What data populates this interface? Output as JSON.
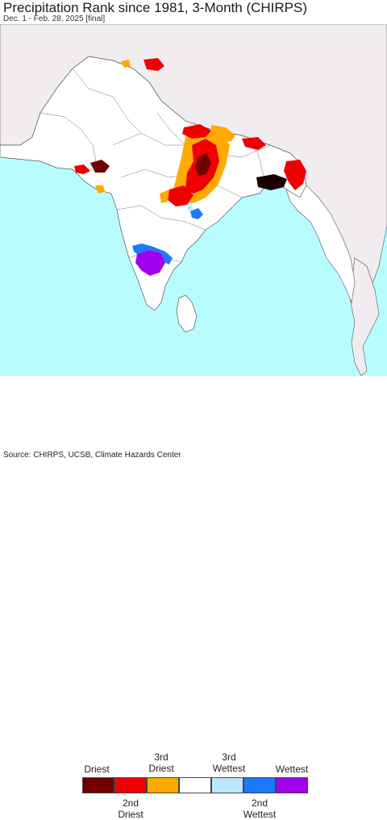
{
  "header": {
    "title": "Precipitation Rank since 1981, 3-Month (CHIRPS)",
    "subtitle": "Dec. 1 - Feb. 28, 2025 [final]"
  },
  "colors": {
    "ocean": "#b8fcff",
    "land_outside": "#f1ecf0",
    "land_region": "#ffffff",
    "border": "#555555"
  },
  "legend": {
    "classes": [
      {
        "top_label": "Driest",
        "bottom_label": "",
        "color": "#720000"
      },
      {
        "top_label": "",
        "bottom_label": "2nd\nDriest",
        "color": "#ee0000"
      },
      {
        "top_label": "3rd\nDriest",
        "bottom_label": "",
        "color": "#ffaa00"
      },
      {
        "top_label": "",
        "bottom_label": "",
        "color": "#ffffff"
      },
      {
        "top_label": "3rd\nWettest",
        "bottom_label": "",
        "color": "#bde8fb"
      },
      {
        "top_label": "",
        "bottom_label": "2nd\nWettest",
        "color": "#1e78ff"
      },
      {
        "top_label": "Wettest",
        "bottom_label": "",
        "color": "#a000ec"
      }
    ]
  },
  "footer": {
    "source": "Source: CHIRPS, UCSB, Climate Hazards Center"
  }
}
